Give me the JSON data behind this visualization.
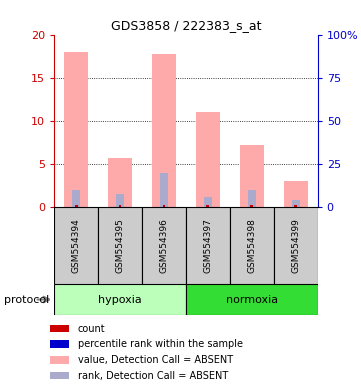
{
  "title": "GDS3858 / 222383_s_at",
  "samples": [
    "GSM554394",
    "GSM554395",
    "GSM554396",
    "GSM554397",
    "GSM554398",
    "GSM554399"
  ],
  "value_absent": [
    18.0,
    5.7,
    17.8,
    11.0,
    7.2,
    3.0
  ],
  "rank_absent": [
    2.0,
    1.5,
    4.0,
    1.2,
    2.0,
    0.8
  ],
  "count_val": [
    0.25,
    0.25,
    0.25,
    0.25,
    0.25,
    0.25
  ],
  "percentile_val": [
    0.25,
    0.25,
    0.25,
    0.25,
    0.25,
    0.25
  ],
  "ylim_left": [
    0,
    20
  ],
  "yticks_left": [
    0,
    5,
    10,
    15,
    20
  ],
  "ytick_labels_right": [
    "0",
    "25",
    "50",
    "75",
    "100%"
  ],
  "left_axis_color": "#cc0000",
  "right_axis_color": "#0000cc",
  "bar_color_absent_value": "#ffaaaa",
  "bar_color_absent_rank": "#aaaacc",
  "bar_color_count": "#cc0000",
  "bar_color_percentile": "#0000cc",
  "sample_box_color": "#cccccc",
  "hypoxia_color": "#bbffbb",
  "normoxia_color": "#33dd33",
  "protocol_label": "protocol"
}
